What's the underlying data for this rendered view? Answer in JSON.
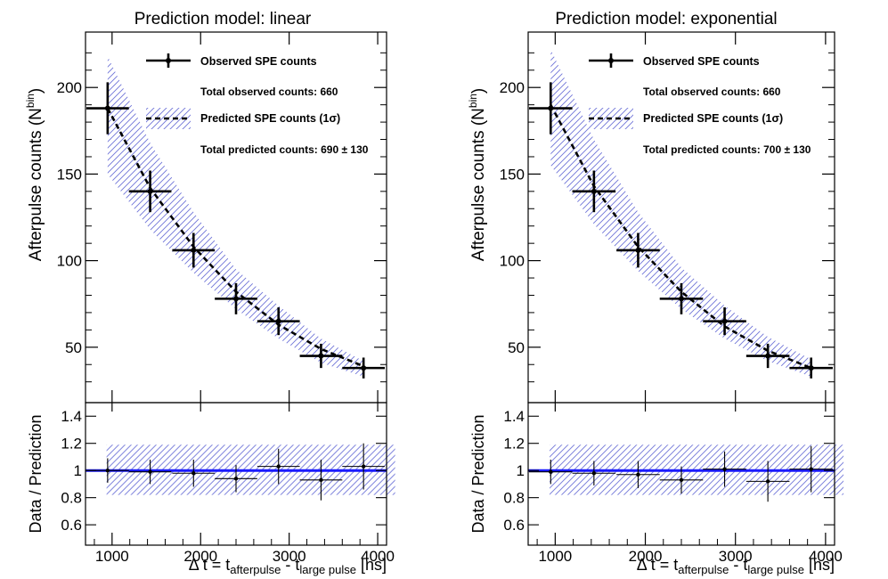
{
  "chart_data": [
    {
      "type": "scatter",
      "title": "Prediction model: linear",
      "ylabel": "Afterpulse counts (N",
      "ylabel_sup": "bin",
      "ylabel_close": ")",
      "xlabel_pre": "Δ t = t",
      "xlabel_sub1": "afterpulse",
      "xlabel_mid": " - t",
      "xlabel_sub2": "large pulse",
      "xlabel_post": " [ns]",
      "ratio_ylabel": "Data / Prediction",
      "xlim": [
        700,
        4100
      ],
      "ylim": [
        18,
        232
      ],
      "ratio_ylim": [
        0.45,
        1.5
      ],
      "xticks": [
        1000,
        2000,
        3000,
        4000
      ],
      "yticks": [
        50,
        100,
        150,
        200
      ],
      "ratio_yticks": [
        0.6,
        0.8,
        1,
        1.2,
        1.4
      ],
      "ratio_ytick_labels": [
        "0.6",
        "0.8",
        "1",
        "1.2",
        "1.4"
      ],
      "legend": {
        "placement": "top-right",
        "observed_label": "Observed SPE counts",
        "observed_total": "Total observed counts: 660",
        "predicted_label": "Predicted SPE counts (1σ)",
        "predicted_total": "Total predicted counts: 690 ± 130"
      },
      "observed": {
        "x": [
          950,
          1430,
          1920,
          2400,
          2880,
          3360,
          3840
        ],
        "xerr": [
          240,
          240,
          240,
          240,
          240,
          240,
          240
        ],
        "y": [
          188,
          140,
          106,
          78,
          65,
          45,
          38
        ],
        "yerr": [
          15,
          12,
          10,
          9,
          8,
          7,
          6
        ]
      },
      "prediction": {
        "x": [
          950,
          1430,
          1920,
          2400,
          2880,
          3360,
          3840
        ],
        "y": [
          188,
          142,
          108,
          82,
          63,
          49,
          39
        ],
        "band_low": [
          150,
          118,
          93,
          72,
          55,
          41,
          33
        ],
        "band_high": [
          218,
          168,
          128,
          95,
          74,
          55,
          42
        ]
      },
      "ratio": {
        "x": [
          950,
          1430,
          1920,
          2400,
          2880,
          3360,
          3840
        ],
        "xerr": [
          240,
          240,
          240,
          240,
          240,
          240,
          240
        ],
        "y": [
          1.0,
          0.99,
          0.98,
          0.94,
          1.03,
          0.93,
          1.03
        ],
        "yerr": [
          0.09,
          0.09,
          0.1,
          0.1,
          0.13,
          0.15,
          0.17
        ],
        "band_low": 0.82,
        "band_high": 1.19,
        "reference": 1.0
      },
      "colors": {
        "band": "#6f74d8",
        "reference": "#1a1aff",
        "markers": "#000000"
      }
    },
    {
      "type": "scatter",
      "title": "Prediction model: exponential",
      "ylabel": "Afterpulse counts (N",
      "ylabel_sup": "bin",
      "ylabel_close": ")",
      "xlabel_pre": "Δ t = t",
      "xlabel_sub1": "afterpulse",
      "xlabel_mid": " - t",
      "xlabel_sub2": "large pulse",
      "xlabel_post": " [ns]",
      "ratio_ylabel": "Data / Prediction",
      "xlim": [
        700,
        4100
      ],
      "ylim": [
        18,
        232
      ],
      "ratio_ylim": [
        0.45,
        1.5
      ],
      "xticks": [
        1000,
        2000,
        3000,
        4000
      ],
      "yticks": [
        50,
        100,
        150,
        200
      ],
      "ratio_yticks": [
        0.6,
        0.8,
        1,
        1.2,
        1.4
      ],
      "ratio_ytick_labels": [
        "0.6",
        "0.8",
        "1",
        "1.2",
        "1.4"
      ],
      "legend": {
        "placement": "top-right",
        "observed_label": "Observed SPE counts",
        "observed_total": "Total observed counts: 660",
        "predicted_label": "Predicted SPE counts (1σ)",
        "predicted_total": "Total predicted counts: 700 ± 130"
      },
      "observed": {
        "x": [
          950,
          1430,
          1920,
          2400,
          2880,
          3360,
          3840
        ],
        "xerr": [
          240,
          240,
          240,
          240,
          240,
          240,
          240
        ],
        "y": [
          188,
          140,
          106,
          78,
          65,
          45,
          38
        ],
        "yerr": [
          15,
          12,
          10,
          9,
          8,
          7,
          6
        ]
      },
      "prediction": {
        "x": [
          950,
          1430,
          1920,
          2400,
          2880,
          3360,
          3840
        ],
        "y": [
          190,
          143,
          108,
          82,
          62,
          48,
          38
        ],
        "band_low": [
          155,
          121,
          94,
          72,
          55,
          42,
          33
        ],
        "band_high": [
          222,
          170,
          128,
          96,
          74,
          56,
          43
        ]
      },
      "ratio": {
        "x": [
          950,
          1430,
          1920,
          2400,
          2880,
          3360,
          3840
        ],
        "xerr": [
          240,
          240,
          240,
          240,
          240,
          240,
          240
        ],
        "y": [
          0.99,
          0.98,
          0.97,
          0.93,
          1.01,
          0.92,
          1.01
        ],
        "yerr": [
          0.09,
          0.09,
          0.1,
          0.1,
          0.13,
          0.15,
          0.17
        ],
        "band_low": 0.82,
        "band_high": 1.19,
        "reference": 1.0
      },
      "colors": {
        "band": "#6f74d8",
        "reference": "#1a1aff",
        "markers": "#000000"
      }
    }
  ]
}
